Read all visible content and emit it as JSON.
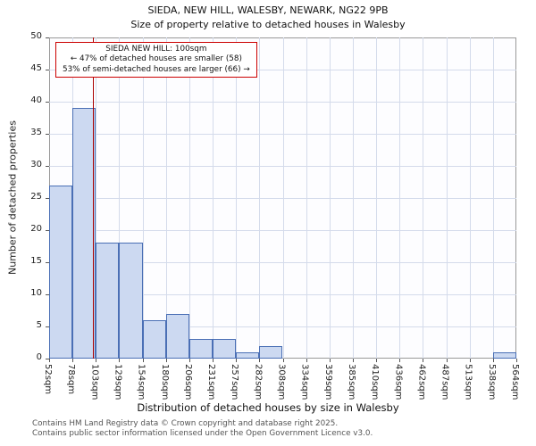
{
  "chart_data": {
    "type": "bar",
    "title": "SIEDA, NEW HILL, WALESBY, NEWARK, NG22 9PB",
    "subtitle": "Size of property relative to detached houses in Walesby",
    "xlabel": "Distribution of detached houses by size in Walesby",
    "ylabel": "Number of detached properties",
    "categories": [
      "52sqm",
      "78sqm",
      "103sqm",
      "129sqm",
      "154sqm",
      "180sqm",
      "206sqm",
      "231sqm",
      "257sqm",
      "282sqm",
      "308sqm",
      "334sqm",
      "359sqm",
      "385sqm",
      "410sqm",
      "436sqm",
      "462sqm",
      "487sqm",
      "513sqm",
      "538sqm",
      "564sqm"
    ],
    "values": [
      27,
      39,
      18,
      18,
      6,
      7,
      3,
      3,
      1,
      2,
      0,
      0,
      0,
      0,
      0,
      0,
      0,
      0,
      0,
      1
    ],
    "ylim": [
      0,
      50
    ],
    "ytick_step": 5,
    "x_range_sqm": [
      52,
      564
    ],
    "grid": true,
    "legend": "none",
    "marker": {
      "label": "SIEDA NEW HILL",
      "value_sqm": 100
    },
    "annotation": {
      "lines": [
        "SIEDA NEW HILL: 100sqm",
        "← 47% of detached houses are smaller (58)",
        "53% of semi-detached houses are larger (66) →"
      ]
    },
    "colors": {
      "bar_fill": "#ccd9f1",
      "bar_border": "#4a6fb5",
      "grid": "#d4dbeb",
      "axis": "#555555",
      "marker": "#aa0000",
      "annotation_border": "#cc0000"
    }
  },
  "footer": {
    "line1": "Contains HM Land Registry data © Crown copyright and database right 2025.",
    "line2": "Contains public sector information licensed under the Open Government Licence v3.0."
  }
}
